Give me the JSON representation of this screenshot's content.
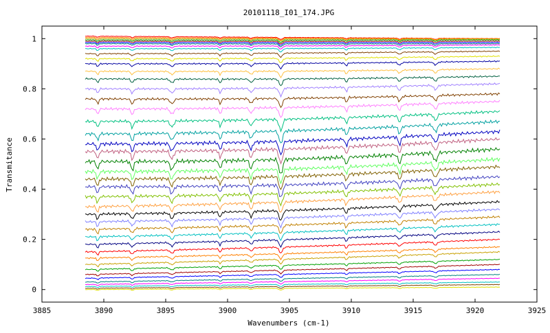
{
  "chart_data": {
    "type": "line",
    "title": "20101118_I01_174.JPG",
    "xlabel": "Wavenumbers (cm-1)",
    "ylabel": "Transmitance",
    "xlim": [
      3885,
      3925
    ],
    "ylim": [
      -0.05,
      1.05
    ],
    "x_ticks": [
      3885,
      3890,
      3895,
      3900,
      3905,
      3910,
      3915,
      3920,
      3925
    ],
    "x_tick_labels": [
      "3885",
      "3890",
      "3895",
      "3900",
      "3905",
      "3910",
      "3915",
      "3920",
      "3925"
    ],
    "y_ticks": [
      0,
      0.2,
      0.4,
      0.6,
      0.8,
      1
    ],
    "y_tick_labels": [
      "0",
      "0.2",
      "0.4",
      "0.6",
      "0.8",
      "1"
    ],
    "grid": false,
    "legend": "none",
    "x_range": [
      3888.5,
      3922
    ],
    "series_levels_at_start": [
      1.01,
      1.005,
      1.0,
      0.995,
      0.99,
      0.985,
      0.98,
      0.97,
      0.96,
      0.94,
      0.92,
      0.9,
      0.87,
      0.84,
      0.8,
      0.76,
      0.72,
      0.67,
      0.62,
      0.58,
      0.55,
      0.51,
      0.47,
      0.44,
      0.41,
      0.37,
      0.33,
      0.3,
      0.27,
      0.24,
      0.21,
      0.18,
      0.15,
      0.125,
      0.1,
      0.08,
      0.06,
      0.045,
      0.03,
      0.02,
      0.012,
      0.005,
      0.0
    ],
    "series_levels_at_end": [
      1.0,
      1.0,
      0.998,
      0.995,
      0.99,
      0.985,
      0.98,
      0.975,
      0.965,
      0.95,
      0.93,
      0.91,
      0.88,
      0.85,
      0.82,
      0.78,
      0.75,
      0.71,
      0.67,
      0.63,
      0.6,
      0.56,
      0.52,
      0.49,
      0.45,
      0.42,
      0.39,
      0.35,
      0.32,
      0.29,
      0.26,
      0.23,
      0.2,
      0.17,
      0.15,
      0.12,
      0.1,
      0.08,
      0.06,
      0.045,
      0.03,
      0.02,
      0.01
    ],
    "absorption_lines": [
      3889.5,
      3892.3,
      3895.5,
      3899.4,
      3901.9,
      3904.3,
      3909.6,
      3913.9,
      3916.8
    ],
    "series_colors": [
      "#ff0000",
      "#ff8000",
      "#c8a000",
      "#00a000",
      "#a00000",
      "#0000ff",
      "#008080",
      "#ff00ff",
      "#00c0c0",
      "#804000",
      "#e0e000",
      "#0000a0",
      "#ffc040",
      "#006040",
      "#a080ff",
      "#804000",
      "#ff80ff",
      "#00c080",
      "#00a0a0",
      "#0000c0",
      "#c06080",
      "#008000",
      "#60ff60",
      "#806000",
      "#4040c0",
      "#80c000",
      "#ffa040",
      "#000000",
      "#8080ff",
      "#c08000",
      "#00c0c0",
      "#000080"
    ]
  }
}
